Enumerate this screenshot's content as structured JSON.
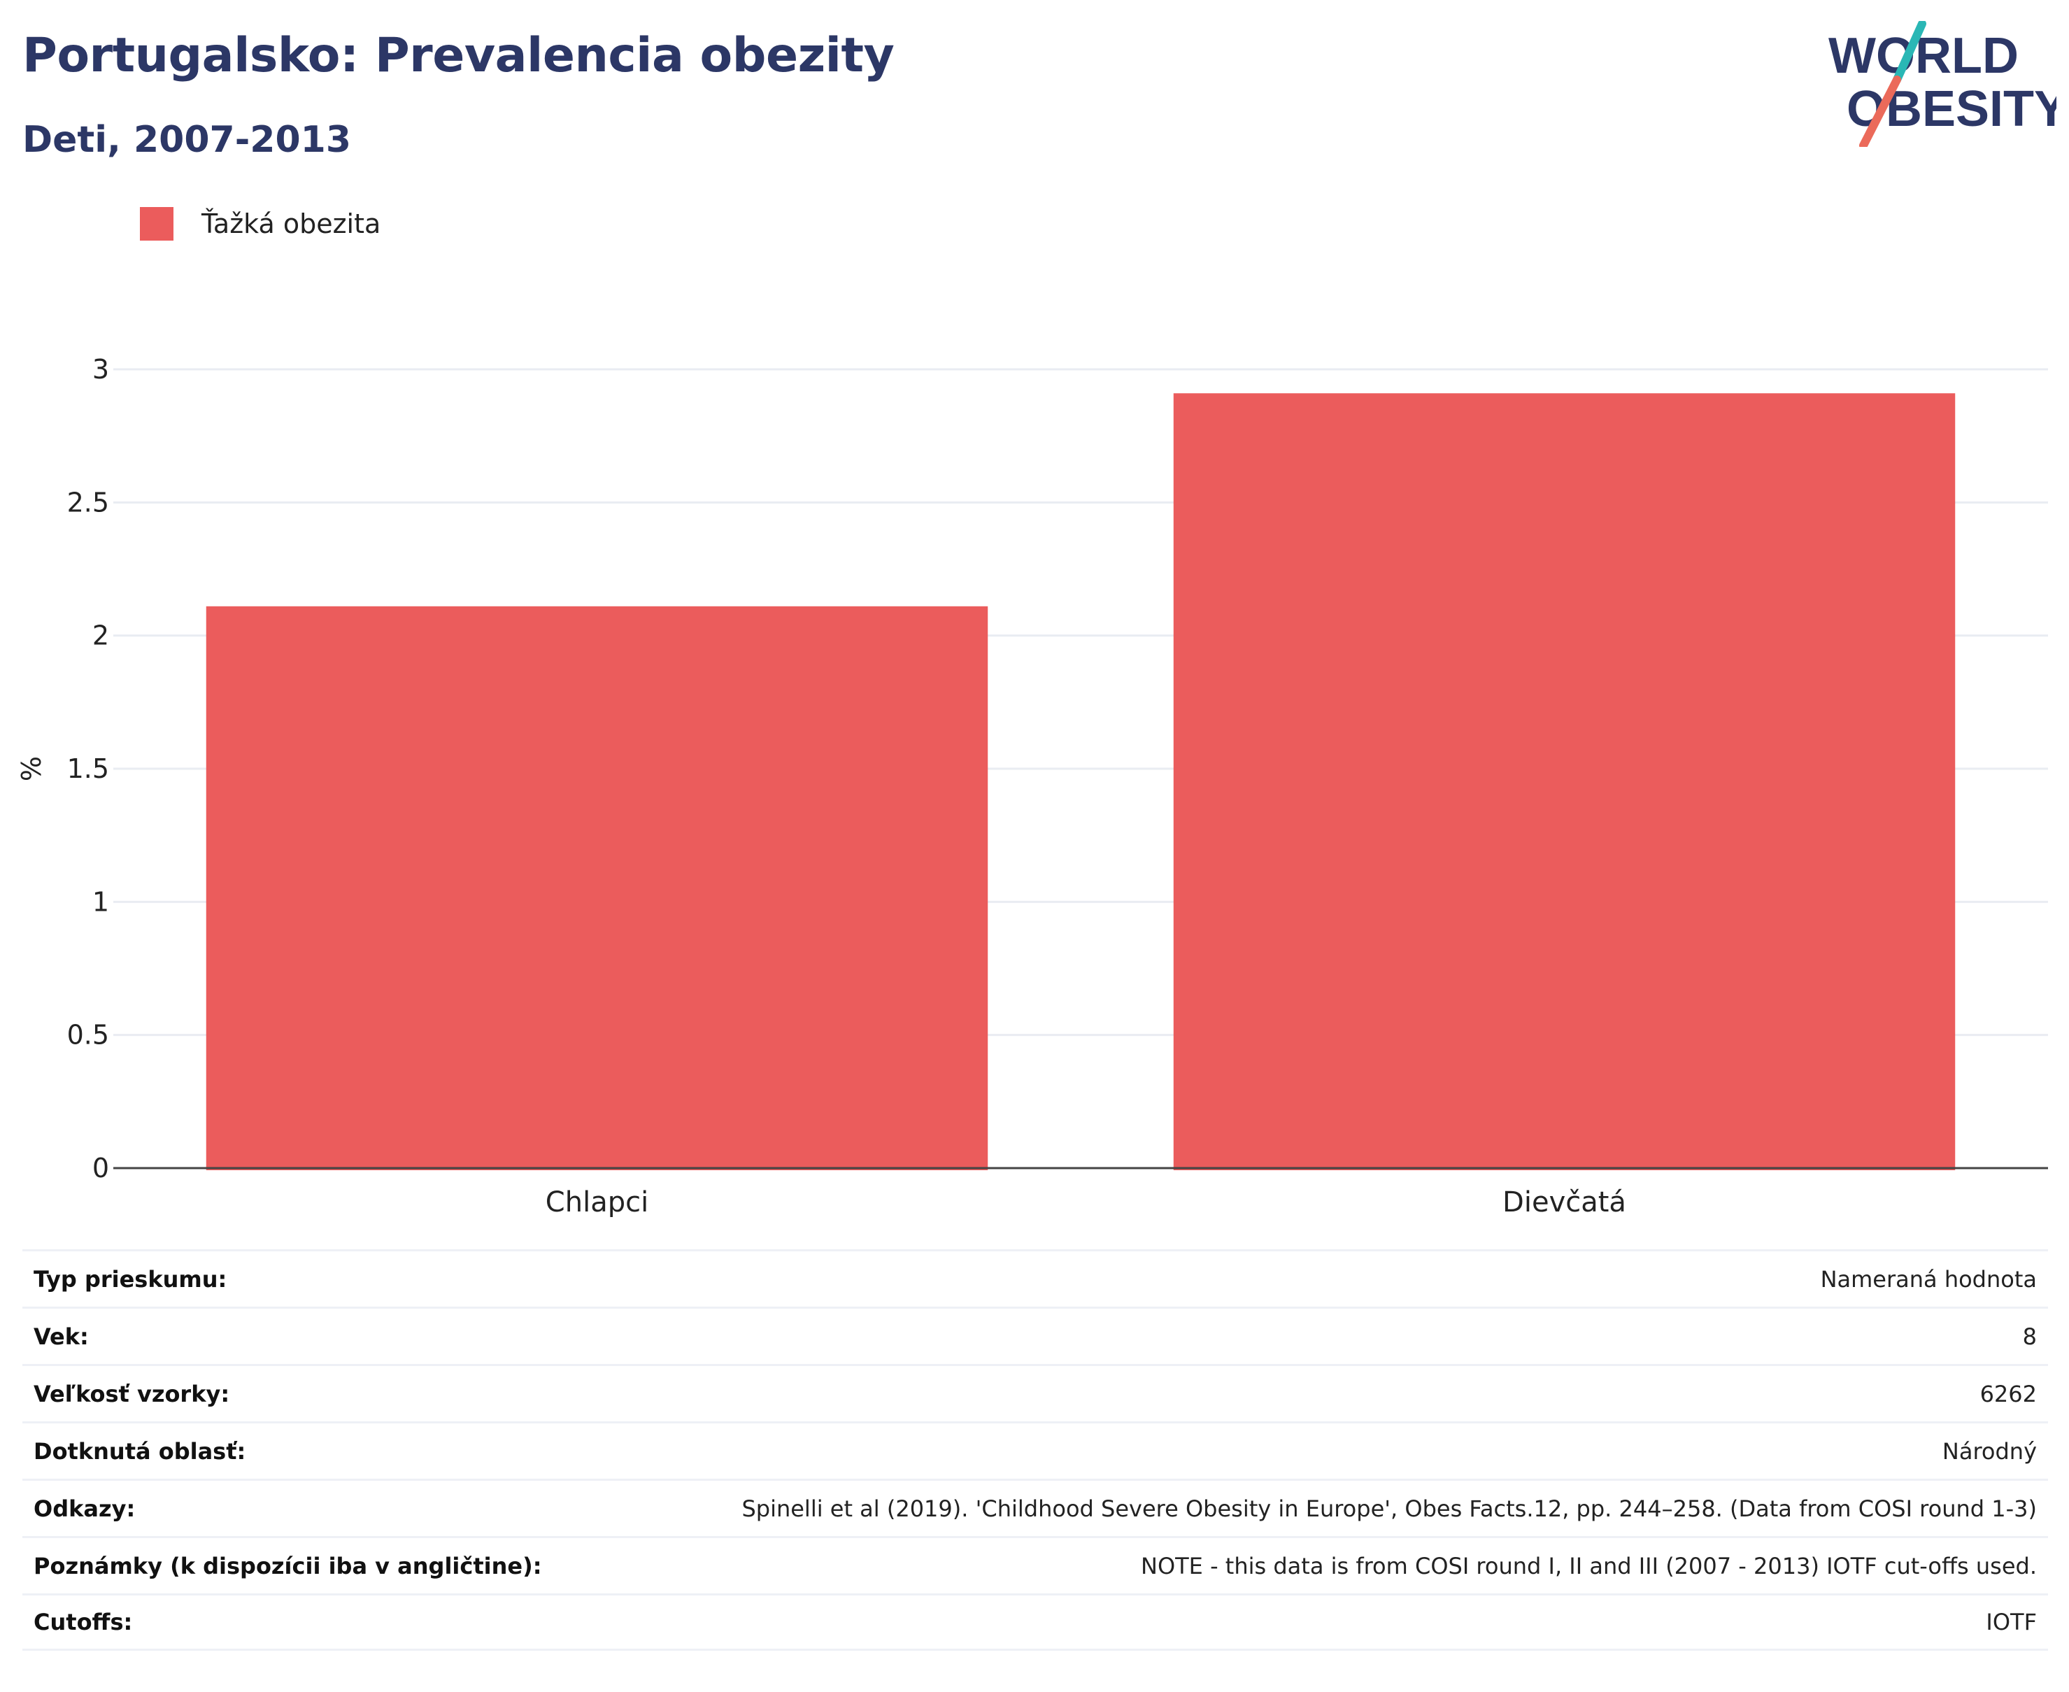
{
  "header": {
    "title": "Portugalsko: Prevalencia obezity",
    "subtitle": "Deti, 2007-2013"
  },
  "logo": {
    "line1": "WORLD",
    "line2": "OBESITY",
    "colors": {
      "text": "#2c3766",
      "slash_teal": "#2ab7b5",
      "slash_coral": "#eb6a5a"
    }
  },
  "chart_data": {
    "type": "bar",
    "categories": [
      "Chlapci",
      "Dievčatá"
    ],
    "series": [
      {
        "name": "Ťažká obezita",
        "values": [
          2.11,
          2.91
        ],
        "color": "#eb5c5c"
      }
    ],
    "title": "",
    "xlabel": "",
    "ylabel": "%",
    "ylim": [
      0,
      3
    ],
    "yticks": [
      0,
      0.5,
      1,
      1.5,
      2,
      2.5,
      3
    ],
    "ytick_labels": [
      "0",
      "0.5",
      "1",
      "1.5",
      "2",
      "2.5",
      "3"
    ],
    "grid": true,
    "legend": "top-left"
  },
  "meta": {
    "rows": [
      {
        "label": "Typ prieskumu:",
        "value": "Nameraná hodnota"
      },
      {
        "label": "Vek:",
        "value": "8"
      },
      {
        "label": "Veľkosť vzorky:",
        "value": "6262"
      },
      {
        "label": "Dotknutá oblasť:",
        "value": "Národný"
      },
      {
        "label": "Odkazy:",
        "value": "Spinelli et al (2019). 'Childhood Severe Obesity in Europe', Obes Facts.12, pp. 244–258. (Data from COSI round 1-3)"
      },
      {
        "label": "Poznámky (k dispozícii iba v angličtine):",
        "value": "NOTE - this data is from COSI round I, II and III (2007 - 2013) IOTF cut-offs used."
      },
      {
        "label": "Cutoffs:",
        "value": "IOTF"
      }
    ]
  }
}
